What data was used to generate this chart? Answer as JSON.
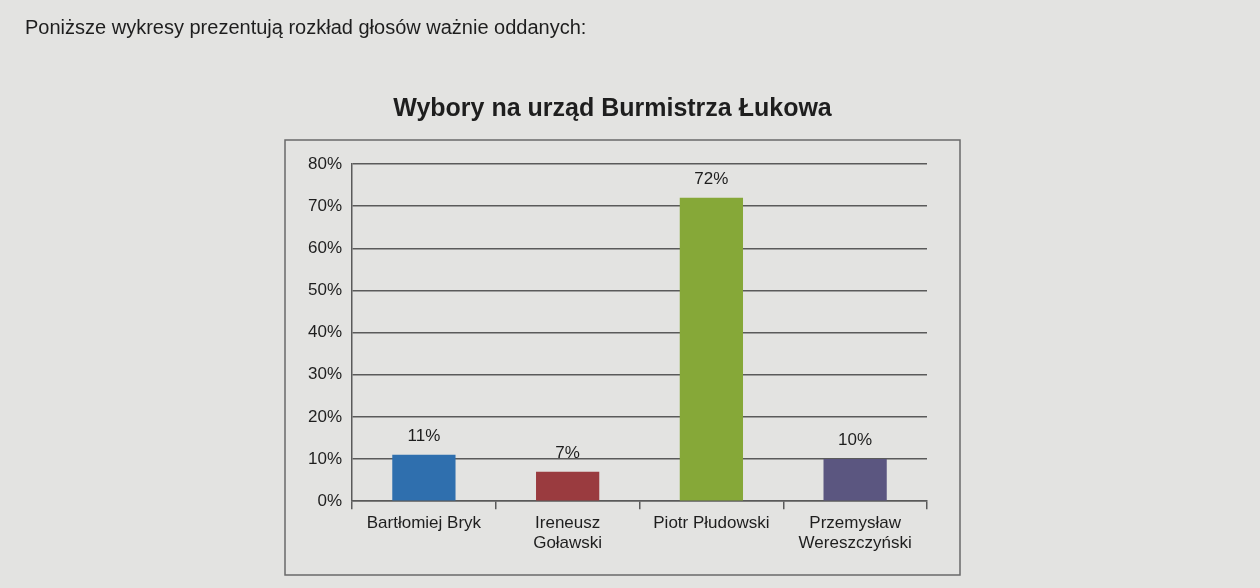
{
  "chart_data": {
    "type": "bar",
    "title": "Wybory na urząd Burmistrza Łukowa",
    "annotations": [
      "Poniższe wykresy prezentują rozkład głosów ważnie oddanych:"
    ],
    "categories": [
      "Bartłomiej Bryk",
      "Ireneusz Goławski",
      "Piotr Płudowski",
      "Przemysław Wereszczyński"
    ],
    "values": [
      11,
      7,
      72,
      10
    ],
    "value_labels": [
      "11%",
      "7%",
      "72%",
      "10%"
    ],
    "colors": [
      "#2f6fae",
      "#9a3b3f",
      "#86a838",
      "#5b5680"
    ],
    "ylim": [
      0,
      80
    ],
    "yticks": [
      {
        "value": 0,
        "label": "0%"
      },
      {
        "value": 10,
        "label": "10%"
      },
      {
        "value": 20,
        "label": "20%"
      },
      {
        "value": 30,
        "label": "30%"
      },
      {
        "value": 40,
        "label": "40%"
      },
      {
        "value": 50,
        "label": "50%"
      },
      {
        "value": 60,
        "label": "60%"
      },
      {
        "value": 70,
        "label": "70%"
      },
      {
        "value": 80,
        "label": "80%"
      }
    ],
    "grid": "y"
  }
}
